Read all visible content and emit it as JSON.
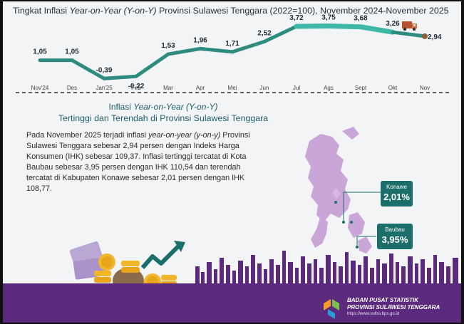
{
  "title": {
    "pre": "Tingkat Inflasi ",
    "italic": "Year-on-Year (Y-on-Y)",
    "post": " Provinsi Sulawesi Tenggara (2022=100), November 2024-November 2025"
  },
  "chart_data": {
    "type": "line",
    "categories": [
      "Nov'24",
      "Des",
      "Jan'25",
      "Feb",
      "Mar",
      "Apr",
      "Mei",
      "Jun",
      "Jul",
      "Ags",
      "Sept",
      "Okt",
      "Nov"
    ],
    "values": [
      1.05,
      1.05,
      -0.39,
      -0.22,
      1.53,
      1.96,
      1.71,
      2.52,
      3.72,
      3.75,
      3.68,
      3.26,
      2.94
    ],
    "value_labels": [
      "1,05",
      "1,05",
      "-0,39",
      "-0,22",
      "1,53",
      "1,96",
      "1,71",
      "2,52",
      "3,72",
      "3,75",
      "3,68",
      "3,26",
      "2,94"
    ],
    "ylim": [
      -0.6,
      4.0
    ],
    "grid": false,
    "line_color": "#2e8b7f",
    "highlight_color": "#3fb8a8",
    "marker_color": "#8a5a3c"
  },
  "section": {
    "title_pre": "Inflasi ",
    "title_italic": "Year-on-Year (Y-on-Y)",
    "title_line2": "Tertinggi dan Terendah di Provinsi Sulawesi Tenggara"
  },
  "body": {
    "p1": "Pada November 2025 terjadi inflasi ",
    "p1_italic": "year-on-year (y-on-y)",
    "p2": " Provinsi Sulawesi Tenggara sebesar 2,94 persen dengan Indeks Harga Konsumen (IHK) sebesar 109,37. Inflasi tertinggi tercatat di Kota Baubau sebesar 3,95 persen dengan IHK 110,54 dan terendah tercatat di Kabupaten Konawe sebesar 2,01 persen dengan IHK 108,77."
  },
  "callouts": [
    {
      "region": "Konawe",
      "value": "2,01%"
    },
    {
      "region": "Baubau",
      "value": "3,95%"
    }
  ],
  "footer": {
    "agency_line1": "BADAN PUSAT STATISTIK",
    "agency_line2": "PROVINSI SULAWESI TENGGARA",
    "url": "https://www.sultra.bps.go.id"
  },
  "colors": {
    "footer_band": "#5b2a7f",
    "map": "#c9a5d8",
    "callout_bg": "#1c6e6b"
  },
  "icons": [
    "truck-icon",
    "money-bag-icon",
    "coin-icon",
    "trend-arrow-icon",
    "bps-logo-icon"
  ]
}
